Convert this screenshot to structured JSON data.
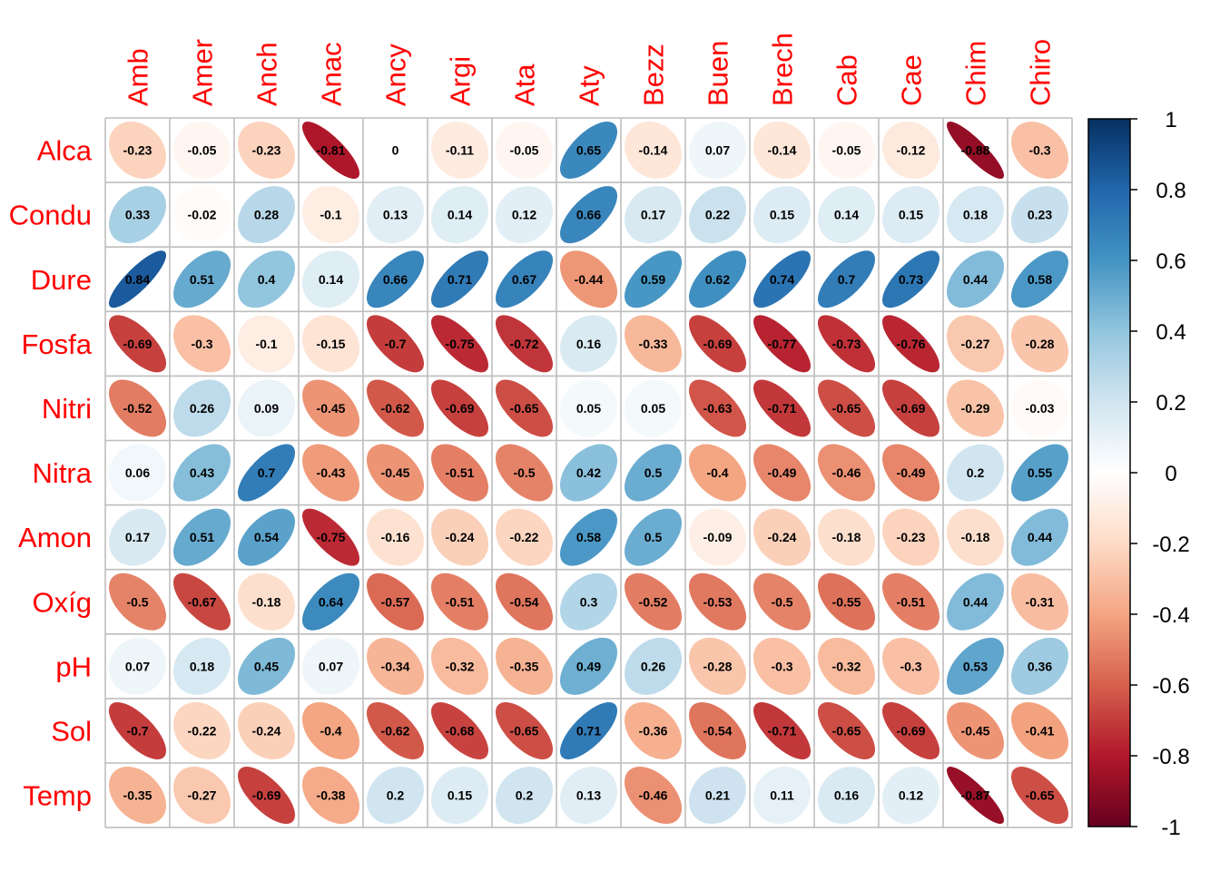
{
  "chart_data": {
    "type": "heatmap",
    "method": "ellipse",
    "title": "",
    "xlabel": "",
    "ylabel": "",
    "columns": [
      "Amb",
      "Amer",
      "Anch",
      "Anac",
      "Ancy",
      "Argi",
      "Ata",
      "Aty",
      "Bezz",
      "Buen",
      "Brech",
      "Cab",
      "Cae",
      "Chim",
      "Chiro"
    ],
    "rows": [
      "Alca",
      "Condu",
      "Dure",
      "Fosfa",
      "Nitri",
      "Nitra",
      "Amon",
      "Oxíg",
      "pH",
      "Sol",
      "Temp"
    ],
    "values": [
      [
        -0.23,
        -0.05,
        -0.23,
        -0.81,
        0,
        -0.11,
        -0.05,
        0.65,
        -0.14,
        0.07,
        -0.14,
        -0.05,
        -0.12,
        -0.88,
        -0.3
      ],
      [
        0.33,
        -0.02,
        0.28,
        -0.1,
        0.13,
        0.14,
        0.12,
        0.66,
        0.17,
        0.22,
        0.15,
        0.14,
        0.15,
        0.18,
        0.23
      ],
      [
        0.84,
        0.51,
        0.4,
        0.14,
        0.66,
        0.71,
        0.67,
        -0.44,
        0.59,
        0.62,
        0.74,
        0.7,
        0.73,
        0.44,
        0.58
      ],
      [
        -0.69,
        -0.3,
        -0.1,
        -0.15,
        -0.7,
        -0.75,
        -0.72,
        0.16,
        -0.33,
        -0.69,
        -0.77,
        -0.73,
        -0.76,
        -0.27,
        -0.28
      ],
      [
        -0.52,
        0.26,
        0.09,
        -0.45,
        -0.62,
        -0.69,
        -0.65,
        0.05,
        0.05,
        -0.63,
        -0.71,
        -0.65,
        -0.69,
        -0.29,
        -0.03
      ],
      [
        0.06,
        0.43,
        0.7,
        -0.43,
        -0.45,
        -0.51,
        -0.5,
        0.42,
        0.5,
        -0.4,
        -0.49,
        -0.46,
        -0.49,
        0.2,
        0.55
      ],
      [
        0.17,
        0.51,
        0.54,
        -0.75,
        -0.16,
        -0.24,
        -0.22,
        0.58,
        0.5,
        -0.09,
        -0.24,
        -0.18,
        -0.23,
        -0.18,
        0.44
      ],
      [
        -0.5,
        -0.67,
        -0.18,
        0.64,
        -0.57,
        -0.51,
        -0.54,
        0.3,
        -0.52,
        -0.53,
        -0.5,
        -0.55,
        -0.51,
        0.44,
        -0.31
      ],
      [
        0.07,
        0.18,
        0.45,
        0.07,
        -0.34,
        -0.32,
        -0.35,
        0.49,
        0.26,
        -0.28,
        -0.3,
        -0.32,
        -0.3,
        0.53,
        0.36
      ],
      [
        -0.7,
        -0.22,
        -0.24,
        -0.4,
        -0.62,
        -0.68,
        -0.65,
        0.71,
        -0.36,
        -0.54,
        -0.71,
        -0.65,
        -0.69,
        -0.45,
        -0.41
      ],
      [
        -0.35,
        -0.27,
        -0.69,
        -0.38,
        0.2,
        0.15,
        0.2,
        0.13,
        -0.46,
        0.21,
        0.11,
        0.16,
        0.12,
        -0.87,
        -0.65
      ]
    ],
    "colorbar": {
      "range": [
        -1,
        1
      ],
      "ticks": [
        "1",
        "0.8",
        "0.6",
        "0.4",
        "0.2",
        "0",
        "-0.2",
        "-0.4",
        "-0.6",
        "-0.8",
        "-1"
      ]
    },
    "colors": {
      "label": "#ff0000",
      "grid": "#bebebe",
      "negative_strong": "#67001f",
      "neutral": "#ffffff",
      "positive_strong": "#053061"
    }
  }
}
